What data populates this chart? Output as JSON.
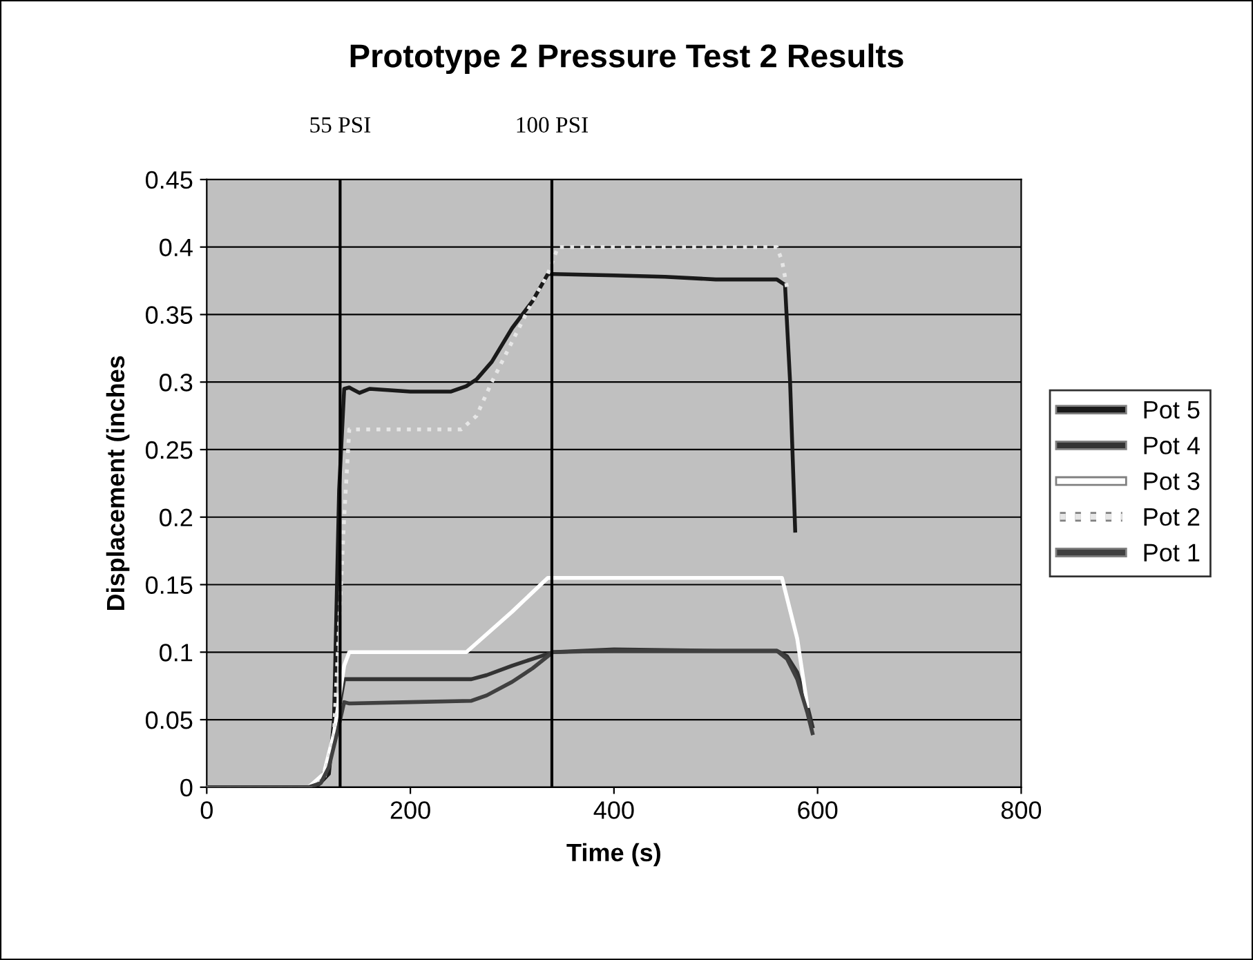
{
  "chart_data": {
    "type": "line",
    "title": "Prototype 2 Pressure Test 2 Results",
    "xlabel": "Time (s)",
    "ylabel": "Displacement (inches",
    "xlim": [
      0,
      800
    ],
    "xticks": [
      0,
      200,
      400,
      600,
      800
    ],
    "ylim": [
      0,
      0.45
    ],
    "yticks": [
      {
        "value": 0,
        "label": "0"
      },
      {
        "value": 0.05,
        "label": "0.05"
      },
      {
        "value": 0.1,
        "label": "0.1"
      },
      {
        "value": 0.15,
        "label": "0.15"
      },
      {
        "value": 0.2,
        "label": "0.2"
      },
      {
        "value": 0.25,
        "label": "0.25"
      },
      {
        "value": 0.3,
        "label": "0.3"
      },
      {
        "value": 0.35,
        "label": "0.35"
      },
      {
        "value": 0.4,
        "label": "0.4"
      },
      {
        "value": 0.45,
        "label": "0.45"
      }
    ],
    "grid": "y",
    "legend": "right",
    "marker": "none",
    "ref_lines": [
      {
        "axis": "x",
        "value": 131,
        "label": "55 PSI",
        "color": "#000000"
      },
      {
        "axis": "x",
        "value": 339,
        "label": "100 PSI",
        "color": "#000000"
      }
    ],
    "series": [
      {
        "name": "Pot 5",
        "color": "#1a1a1a",
        "x": [
          0,
          100,
          110,
          120,
          125,
          130,
          135,
          140,
          150,
          160,
          200,
          240,
          255,
          265,
          280,
          300,
          320,
          335,
          340,
          400,
          450,
          500,
          560,
          568,
          573,
          578
        ],
        "values": [
          0,
          0,
          0.002,
          0.01,
          0.05,
          0.22,
          0.295,
          0.296,
          0.292,
          0.295,
          0.293,
          0.293,
          0.297,
          0.302,
          0.315,
          0.34,
          0.36,
          0.38,
          0.38,
          0.379,
          0.378,
          0.376,
          0.376,
          0.372,
          0.3,
          0.19
        ]
      },
      {
        "name": "Pot 4",
        "color": "#333333",
        "x": [
          0,
          100,
          112,
          120,
          128,
          135,
          140,
          200,
          260,
          275,
          300,
          320,
          340,
          400,
          500,
          560,
          570,
          580,
          590,
          595
        ],
        "values": [
          0,
          0,
          0.005,
          0.02,
          0.05,
          0.08,
          0.08,
          0.08,
          0.08,
          0.083,
          0.09,
          0.095,
          0.1,
          0.102,
          0.101,
          0.101,
          0.097,
          0.085,
          0.06,
          0.045
        ]
      },
      {
        "name": "Pot 3",
        "color": "#ffffff",
        "x": [
          0,
          100,
          115,
          125,
          135,
          140,
          200,
          255,
          270,
          300,
          335,
          345,
          400,
          500,
          560,
          565,
          580,
          590
        ],
        "values": [
          0,
          0,
          0.01,
          0.04,
          0.09,
          0.1,
          0.1,
          0.1,
          0.11,
          0.13,
          0.155,
          0.155,
          0.155,
          0.155,
          0.155,
          0.155,
          0.11,
          0.06
        ]
      },
      {
        "name": "Pot 2",
        "color": "#e6e6e6",
        "line_style": "dotted",
        "x": [
          0,
          100,
          115,
          125,
          135,
          140,
          200,
          250,
          265,
          280,
          300,
          320,
          335,
          345,
          400,
          500,
          560,
          565,
          570
        ],
        "values": [
          0,
          0,
          0.005,
          0.04,
          0.2,
          0.265,
          0.265,
          0.265,
          0.275,
          0.3,
          0.33,
          0.36,
          0.38,
          0.4,
          0.4,
          0.4,
          0.4,
          0.39,
          0.37
        ]
      },
      {
        "name": "Pot 1",
        "color": "#404040",
        "x": [
          0,
          100,
          112,
          120,
          128,
          135,
          140,
          200,
          260,
          275,
          300,
          320,
          340,
          400,
          500,
          560,
          570,
          580,
          590,
          595
        ],
        "values": [
          0,
          0,
          0.003,
          0.015,
          0.04,
          0.063,
          0.062,
          0.063,
          0.064,
          0.068,
          0.078,
          0.088,
          0.1,
          0.101,
          0.101,
          0.101,
          0.095,
          0.08,
          0.055,
          0.04
        ]
      }
    ]
  }
}
